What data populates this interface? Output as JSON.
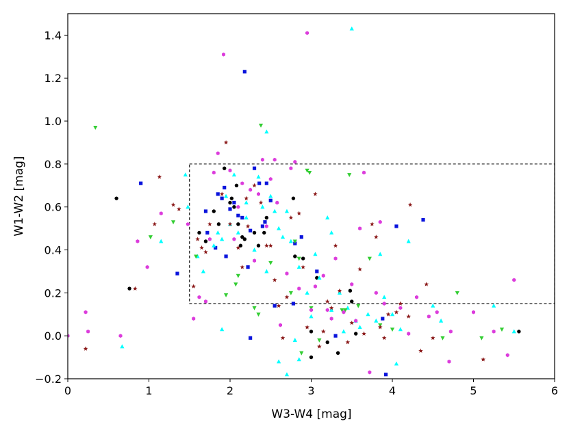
{
  "chart_data": {
    "type": "scatter",
    "title": "",
    "xlabel": "W3-W4 [mag]",
    "ylabel": "W1-W2 [mag]",
    "xlim": [
      0,
      6
    ],
    "ylim": [
      -0.2,
      1.5
    ],
    "xticks": [
      0,
      1,
      2,
      3,
      4,
      5,
      6
    ],
    "xtick_labels": [
      "0",
      "1",
      "2",
      "3",
      "4",
      "5",
      "6"
    ],
    "yticks": [
      -0.2,
      0.0,
      0.2,
      0.4,
      0.6,
      0.8,
      1.0,
      1.2,
      1.4
    ],
    "ytick_labels": [
      "−0.2",
      "0.0",
      "0.2",
      "0.4",
      "0.6",
      "0.8",
      "1.0",
      "1.2",
      "1.4"
    ],
    "grid": false,
    "legend": "none",
    "region": {
      "x": [
        1.5,
        6
      ],
      "y": [
        0.15,
        0.8
      ],
      "style": "dashed",
      "color": "#000000"
    },
    "series": [
      {
        "marker": "circle",
        "color": "#000000",
        "points": [
          [
            0.6,
            0.64
          ],
          [
            0.76,
            0.22
          ],
          [
            1.62,
            0.48
          ],
          [
            1.7,
            0.44
          ],
          [
            1.8,
            0.58
          ],
          [
            1.86,
            0.52
          ],
          [
            1.93,
            0.78
          ],
          [
            2.0,
            0.62
          ],
          [
            2.02,
            0.64
          ],
          [
            2.05,
            0.6
          ],
          [
            2.08,
            0.7
          ],
          [
            2.1,
            0.52
          ],
          [
            2.13,
            0.42
          ],
          [
            2.15,
            0.46
          ],
          [
            2.18,
            0.45
          ],
          [
            2.3,
            0.48
          ],
          [
            2.35,
            0.42
          ],
          [
            2.42,
            0.48
          ],
          [
            2.45,
            0.55
          ],
          [
            2.78,
            0.64
          ],
          [
            2.8,
            0.37
          ],
          [
            2.9,
            0.36
          ],
          [
            3.0,
            0.02
          ],
          [
            3.0,
            -0.1
          ],
          [
            3.07,
            0.27
          ],
          [
            3.2,
            -0.03
          ],
          [
            3.33,
            -0.08
          ],
          [
            3.48,
            0.21
          ],
          [
            3.5,
            0.16
          ],
          [
            3.55,
            0.01
          ],
          [
            5.56,
            0.02
          ]
        ]
      },
      {
        "marker": "square",
        "color": "#0a14dc",
        "points": [
          [
            0.9,
            0.71
          ],
          [
            1.35,
            0.29
          ],
          [
            1.7,
            0.58
          ],
          [
            1.72,
            0.48
          ],
          [
            1.82,
            0.41
          ],
          [
            1.85,
            0.66
          ],
          [
            1.9,
            0.64
          ],
          [
            1.93,
            0.69
          ],
          [
            1.95,
            0.37
          ],
          [
            2.0,
            0.59
          ],
          [
            2.05,
            0.62
          ],
          [
            2.1,
            0.56
          ],
          [
            2.15,
            0.55
          ],
          [
            2.18,
            1.23
          ],
          [
            2.22,
            0.32
          ],
          [
            2.25,
            0.49
          ],
          [
            2.25,
            -0.01
          ],
          [
            2.3,
            0.78
          ],
          [
            2.36,
            0.71
          ],
          [
            2.4,
            0.51
          ],
          [
            2.43,
            0.53
          ],
          [
            2.45,
            0.71
          ],
          [
            2.5,
            0.63
          ],
          [
            2.55,
            0.14
          ],
          [
            2.78,
            0.15
          ],
          [
            2.8,
            0.43
          ],
          [
            2.88,
            0.46
          ],
          [
            3.07,
            0.3
          ],
          [
            3.3,
            0.0
          ],
          [
            3.88,
            0.08
          ],
          [
            3.92,
            -0.18
          ],
          [
            4.05,
            0.51
          ],
          [
            4.38,
            0.54
          ]
        ]
      },
      {
        "marker": "triangle-up",
        "color": "#00ffff",
        "points": [
          [
            0.67,
            -0.05
          ],
          [
            1.15,
            0.44
          ],
          [
            1.45,
            0.75
          ],
          [
            1.48,
            0.6
          ],
          [
            1.6,
            0.37
          ],
          [
            1.67,
            0.3
          ],
          [
            1.8,
            0.42
          ],
          [
            1.85,
            0.48
          ],
          [
            1.9,
            0.45
          ],
          [
            1.9,
            0.03
          ],
          [
            1.95,
            0.65
          ],
          [
            2.0,
            0.52
          ],
          [
            2.05,
            0.75
          ],
          [
            2.1,
            0.48
          ],
          [
            2.2,
            0.62
          ],
          [
            2.2,
            0.55
          ],
          [
            2.3,
            0.4
          ],
          [
            2.35,
            0.74
          ],
          [
            2.4,
            0.6
          ],
          [
            2.45,
            0.3
          ],
          [
            2.45,
            0.95
          ],
          [
            2.5,
            0.65
          ],
          [
            2.55,
            0.58
          ],
          [
            2.6,
            0.5
          ],
          [
            2.65,
            0.46
          ],
          [
            2.7,
            0.58
          ],
          [
            2.75,
            0.44
          ],
          [
            2.8,
            -0.02
          ],
          [
            2.85,
            0.32
          ],
          [
            2.85,
            -0.11
          ],
          [
            2.6,
            -0.12
          ],
          [
            2.7,
            -0.18
          ],
          [
            2.95,
            0.2
          ],
          [
            3.0,
            0.09
          ],
          [
            3.05,
            0.38
          ],
          [
            3.1,
            0.27
          ],
          [
            3.2,
            0.55
          ],
          [
            3.25,
            0.48
          ],
          [
            3.25,
            0.12
          ],
          [
            3.35,
            0.2
          ],
          [
            3.4,
            0.02
          ],
          [
            3.45,
            0.13
          ],
          [
            3.5,
            1.43
          ],
          [
            3.55,
            0.07
          ],
          [
            3.6,
            0.04
          ],
          [
            3.7,
            0.1
          ],
          [
            3.8,
            0.07
          ],
          [
            3.85,
            0.38
          ],
          [
            3.9,
            0.18
          ],
          [
            4.0,
            0.1
          ],
          [
            4.05,
            -0.13
          ],
          [
            4.1,
            0.03
          ],
          [
            4.2,
            0.44
          ],
          [
            4.5,
            0.14
          ],
          [
            4.6,
            0.07
          ],
          [
            5.25,
            0.14
          ],
          [
            5.5,
            0.02
          ]
        ]
      },
      {
        "marker": "triangle-down",
        "color": "#32cd32",
        "points": [
          [
            0.34,
            0.97
          ],
          [
            1.02,
            0.46
          ],
          [
            1.3,
            0.53
          ],
          [
            1.58,
            0.37
          ],
          [
            1.95,
            0.19
          ],
          [
            2.07,
            0.24
          ],
          [
            2.1,
            0.28
          ],
          [
            2.3,
            0.13
          ],
          [
            2.35,
            0.1
          ],
          [
            2.38,
            0.98
          ],
          [
            2.5,
            0.34
          ],
          [
            2.75,
            0.2
          ],
          [
            2.8,
            0.44
          ],
          [
            2.85,
            0.36
          ],
          [
            2.88,
            -0.08
          ],
          [
            2.98,
            0.76
          ],
          [
            2.95,
            0.77
          ],
          [
            3.0,
            0.13
          ],
          [
            3.1,
            -0.02
          ],
          [
            3.38,
            0.12
          ],
          [
            3.42,
            0.12
          ],
          [
            3.47,
            0.75
          ],
          [
            3.58,
            0.14
          ],
          [
            3.72,
            0.36
          ],
          [
            3.85,
            0.05
          ],
          [
            4.0,
            0.03
          ],
          [
            4.62,
            -0.01
          ],
          [
            4.8,
            0.2
          ],
          [
            5.1,
            -0.01
          ],
          [
            5.35,
            0.03
          ]
        ]
      },
      {
        "marker": "star",
        "color": "#8b1a1a",
        "points": [
          [
            0.22,
            -0.06
          ],
          [
            0.83,
            0.22
          ],
          [
            1.07,
            0.52
          ],
          [
            1.13,
            0.74
          ],
          [
            1.3,
            0.61
          ],
          [
            1.37,
            0.59
          ],
          [
            1.55,
            0.23
          ],
          [
            1.6,
            0.45
          ],
          [
            1.65,
            0.41
          ],
          [
            1.7,
            0.39
          ],
          [
            1.75,
            0.52
          ],
          [
            1.9,
            0.66
          ],
          [
            1.95,
            0.9
          ],
          [
            2.0,
            0.52
          ],
          [
            2.1,
            0.41
          ],
          [
            2.15,
            0.32
          ],
          [
            2.2,
            0.64
          ],
          [
            2.22,
            0.51
          ],
          [
            2.3,
            0.7
          ],
          [
            2.38,
            0.62
          ],
          [
            2.45,
            0.42
          ],
          [
            2.5,
            0.42
          ],
          [
            2.55,
            0.26
          ],
          [
            2.6,
            0.14
          ],
          [
            2.65,
            -0.01
          ],
          [
            2.7,
            0.18
          ],
          [
            2.75,
            0.55
          ],
          [
            2.85,
            0.57
          ],
          [
            2.9,
            0.32
          ],
          [
            2.95,
            0.04
          ],
          [
            3.05,
            0.66
          ],
          [
            3.1,
            -0.05
          ],
          [
            3.15,
            0.02
          ],
          [
            3.2,
            0.16
          ],
          [
            3.25,
            0.13
          ],
          [
            3.3,
            0.42
          ],
          [
            3.35,
            0.21
          ],
          [
            3.45,
            -0.03
          ],
          [
            3.5,
            0.06
          ],
          [
            3.6,
            0.31
          ],
          [
            3.65,
            0.01
          ],
          [
            3.75,
            0.52
          ],
          [
            3.8,
            0.46
          ],
          [
            3.85,
            0.04
          ],
          [
            3.9,
            -0.01
          ],
          [
            3.95,
            0.1
          ],
          [
            4.05,
            0.11
          ],
          [
            4.1,
            0.15
          ],
          [
            4.2,
            0.09
          ],
          [
            4.22,
            0.61
          ],
          [
            4.35,
            -0.07
          ],
          [
            4.42,
            0.24
          ],
          [
            4.5,
            -0.01
          ],
          [
            5.12,
            -0.11
          ]
        ]
      },
      {
        "marker": "hexagon",
        "color": "#dc3cdc",
        "points": [
          [
            0.0,
            0.0
          ],
          [
            0.22,
            0.11
          ],
          [
            0.25,
            0.02
          ],
          [
            0.65,
            0.0
          ],
          [
            0.86,
            0.44
          ],
          [
            0.98,
            0.32
          ],
          [
            1.15,
            0.57
          ],
          [
            1.48,
            0.52
          ],
          [
            1.55,
            0.08
          ],
          [
            1.62,
            0.18
          ],
          [
            1.7,
            0.16
          ],
          [
            1.75,
            0.45
          ],
          [
            1.8,
            0.76
          ],
          [
            1.85,
            0.85
          ],
          [
            1.92,
            1.31
          ],
          [
            2.0,
            0.77
          ],
          [
            2.05,
            0.45
          ],
          [
            2.1,
            0.6
          ],
          [
            2.15,
            0.71
          ],
          [
            2.25,
            0.68
          ],
          [
            2.3,
            0.35
          ],
          [
            2.35,
            0.66
          ],
          [
            2.4,
            0.82
          ],
          [
            2.45,
            0.51
          ],
          [
            2.5,
            0.73
          ],
          [
            2.55,
            0.82
          ],
          [
            2.58,
            0.62
          ],
          [
            2.62,
            0.05
          ],
          [
            2.7,
            0.29
          ],
          [
            2.75,
            0.78
          ],
          [
            2.8,
            0.81
          ],
          [
            2.85,
            0.22
          ],
          [
            2.95,
            1.41
          ],
          [
            3.0,
            0.12
          ],
          [
            3.05,
            0.23
          ],
          [
            3.15,
            0.28
          ],
          [
            3.2,
            0.12
          ],
          [
            3.25,
            0.08
          ],
          [
            3.3,
            0.36
          ],
          [
            3.4,
            0.11
          ],
          [
            3.5,
            0.24
          ],
          [
            3.55,
            0.07
          ],
          [
            3.6,
            0.5
          ],
          [
            3.65,
            0.76
          ],
          [
            3.72,
            -0.17
          ],
          [
            3.8,
            0.2
          ],
          [
            3.85,
            0.53
          ],
          [
            3.9,
            0.15
          ],
          [
            4.1,
            0.13
          ],
          [
            4.2,
            0.01
          ],
          [
            4.3,
            0.18
          ],
          [
            4.45,
            0.09
          ],
          [
            4.55,
            0.11
          ],
          [
            4.7,
            -0.12
          ],
          [
            4.72,
            0.02
          ],
          [
            5.0,
            0.11
          ],
          [
            5.25,
            0.02
          ],
          [
            5.42,
            -0.09
          ],
          [
            5.5,
            0.26
          ]
        ]
      }
    ]
  }
}
